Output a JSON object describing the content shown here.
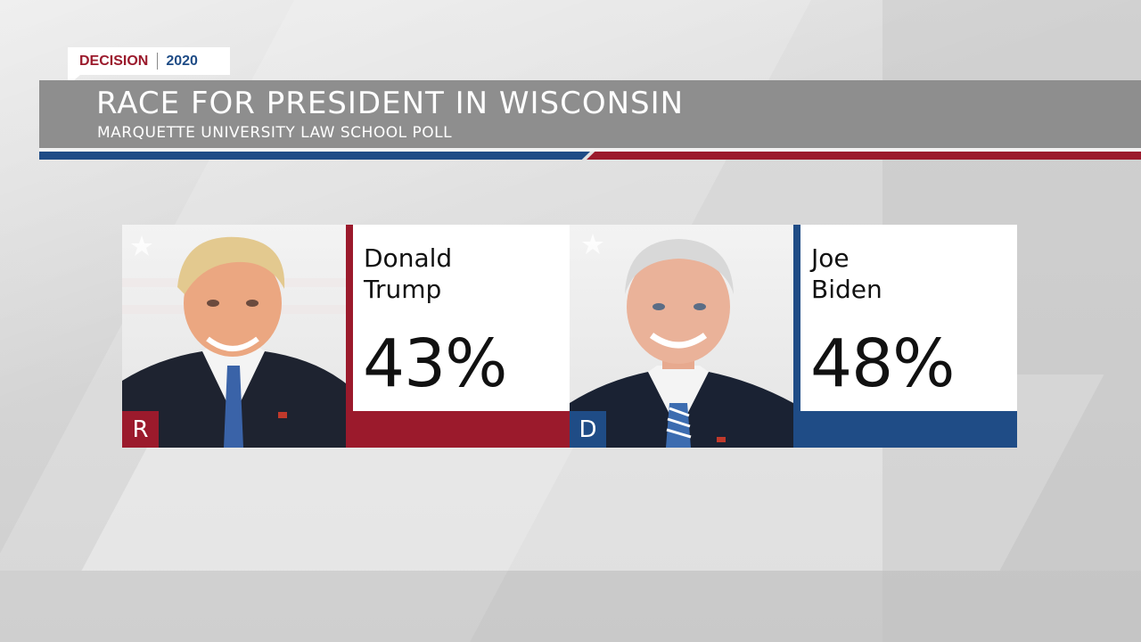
{
  "header": {
    "tag_left": "DECISION",
    "tag_right": "2020",
    "title": "RACE FOR PRESIDENT IN WISCONSIN",
    "subtitle": "MARQUETTE UNIVERSITY LAW SCHOOL POLL"
  },
  "candidates": [
    {
      "first_name": "Donald",
      "last_name": "Trump",
      "party": "R",
      "percent": "43%",
      "color": "#9b1a2c"
    },
    {
      "first_name": "Joe",
      "last_name": "Biden",
      "party": "D",
      "percent": "48%",
      "color": "#1f4c86"
    }
  ],
  "colors": {
    "republican": "#9b1a2c",
    "democrat": "#1f4c86",
    "bar_gray": "#8e8e8e"
  }
}
